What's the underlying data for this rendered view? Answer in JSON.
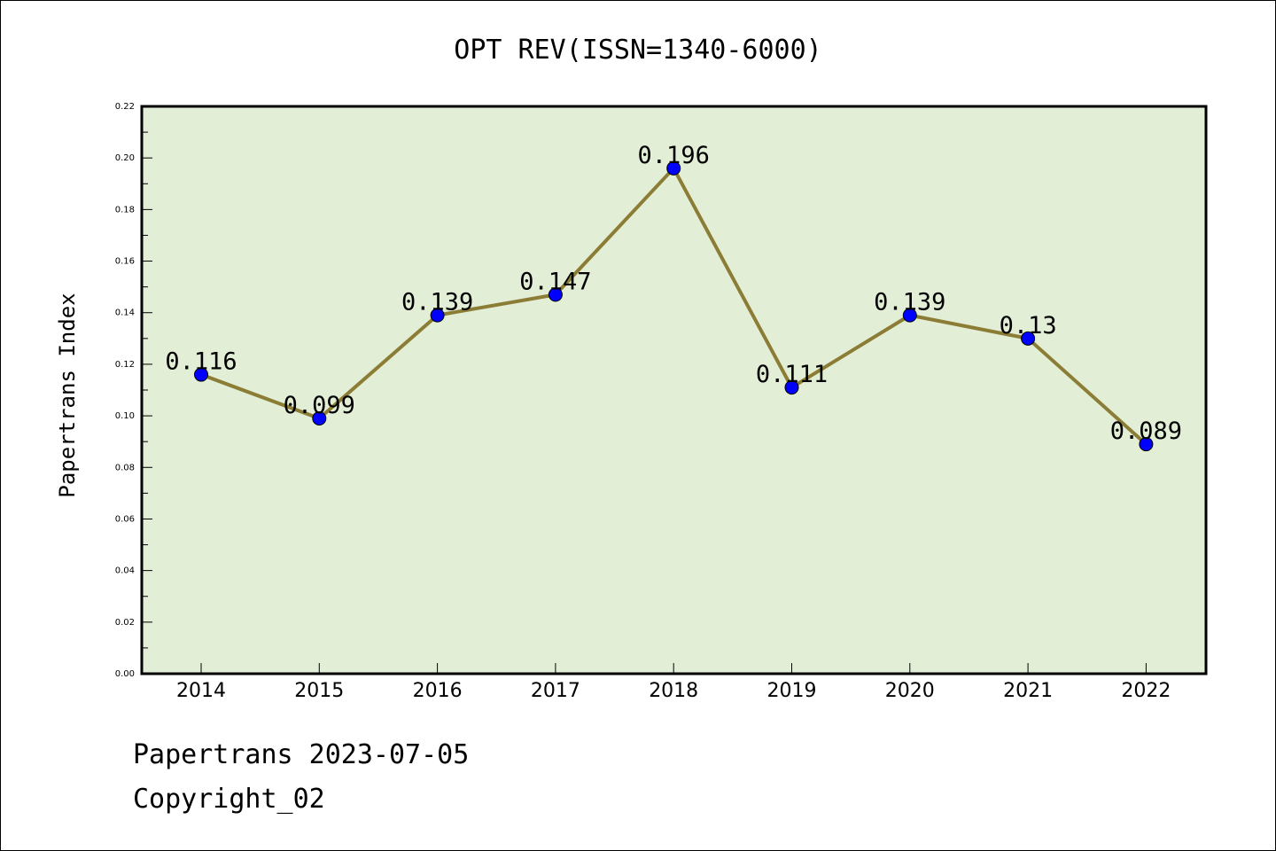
{
  "colors": {
    "plot_background": "#e2efd6",
    "line": "#8b7d35",
    "marker": "#0000ff",
    "axis": "#000000"
  },
  "chart_data": {
    "type": "line",
    "title": "OPT REV(ISSN=1340-6000)",
    "xlabel": "",
    "ylabel": "Papertrans Index",
    "categories": [
      "2014",
      "2015",
      "2016",
      "2017",
      "2018",
      "2019",
      "2020",
      "2021",
      "2022"
    ],
    "values": [
      0.116,
      0.099,
      0.139,
      0.147,
      0.196,
      0.111,
      0.139,
      0.13,
      0.089
    ],
    "data_labels": [
      "0.116",
      "0.099",
      "0.139",
      "0.147",
      "0.196",
      "0.111",
      "0.139",
      "0.13",
      "0.089"
    ],
    "ylim": [
      0,
      0.22
    ],
    "yticks": [
      "0.00",
      "0.02",
      "0.04",
      "0.06",
      "0.08",
      "0.10",
      "0.12",
      "0.14",
      "0.16",
      "0.18",
      "0.20",
      "0.22"
    ],
    "grid": false,
    "legend": "none"
  },
  "footer": {
    "date_text": "Papertrans 2023-07-05",
    "copyright_text": "Copyright_02"
  }
}
